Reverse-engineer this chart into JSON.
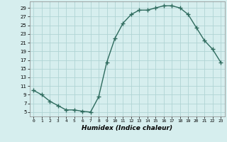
{
  "x": [
    0,
    1,
    2,
    3,
    4,
    5,
    6,
    7,
    8,
    9,
    10,
    11,
    12,
    13,
    14,
    15,
    16,
    17,
    18,
    19,
    20,
    21,
    22,
    23
  ],
  "y": [
    10,
    9,
    7.5,
    6.5,
    5.5,
    5.5,
    5.2,
    5.0,
    8.5,
    16.5,
    22.0,
    25.5,
    27.5,
    28.5,
    28.5,
    29.0,
    29.5,
    29.5,
    29.0,
    27.5,
    24.5,
    21.5,
    19.5,
    16.5
  ],
  "line_color": "#2e6b5e",
  "marker": "+",
  "marker_size": 4,
  "line_width": 1.0,
  "bg_color": "#d6eeee",
  "grid_color": "#b0d4d4",
  "xlabel": "Humidex (Indice chaleur)",
  "xlabel_fontsize": 6.5,
  "xlabel_style": "italic",
  "xlabel_weight": "bold",
  "yticks": [
    5,
    7,
    9,
    11,
    13,
    15,
    17,
    19,
    21,
    23,
    25,
    27,
    29
  ],
  "xtick_labels": [
    "0",
    "1",
    "2",
    "3",
    "4",
    "5",
    "6",
    "7",
    "8",
    "9",
    "10",
    "11",
    "12",
    "13",
    "14",
    "15",
    "16",
    "17",
    "18",
    "19",
    "20",
    "21",
    "22",
    "23"
  ],
  "xlim": [
    -0.5,
    23.5
  ],
  "ylim": [
    4.0,
    30.5
  ]
}
